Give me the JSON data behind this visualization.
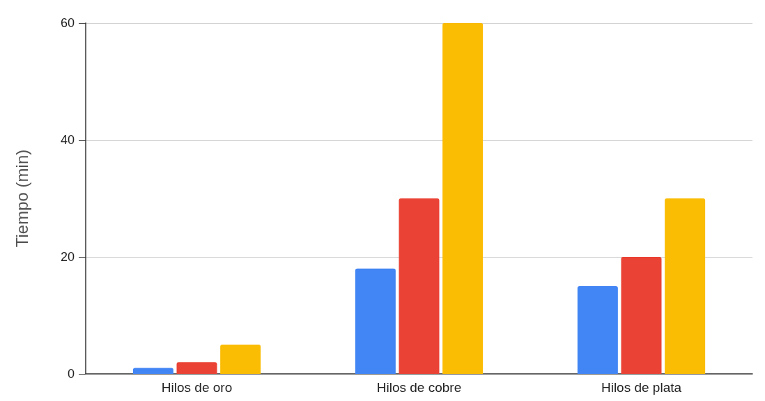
{
  "chart_data": {
    "type": "bar",
    "ylabel": "Tiempo (min)",
    "categories": [
      "Hilos de oro",
      "Hilos de cobre",
      "Hilos de plata"
    ],
    "series": [
      {
        "color": "#4285f4",
        "values": [
          1,
          18,
          15
        ]
      },
      {
        "color": "#ea4335",
        "values": [
          2,
          30,
          20
        ]
      },
      {
        "color": "#fbbc04",
        "values": [
          5,
          60,
          30
        ]
      }
    ],
    "ylim": [
      0,
      60
    ],
    "yticks": [
      0,
      20,
      40,
      60
    ],
    "grid": "y"
  }
}
